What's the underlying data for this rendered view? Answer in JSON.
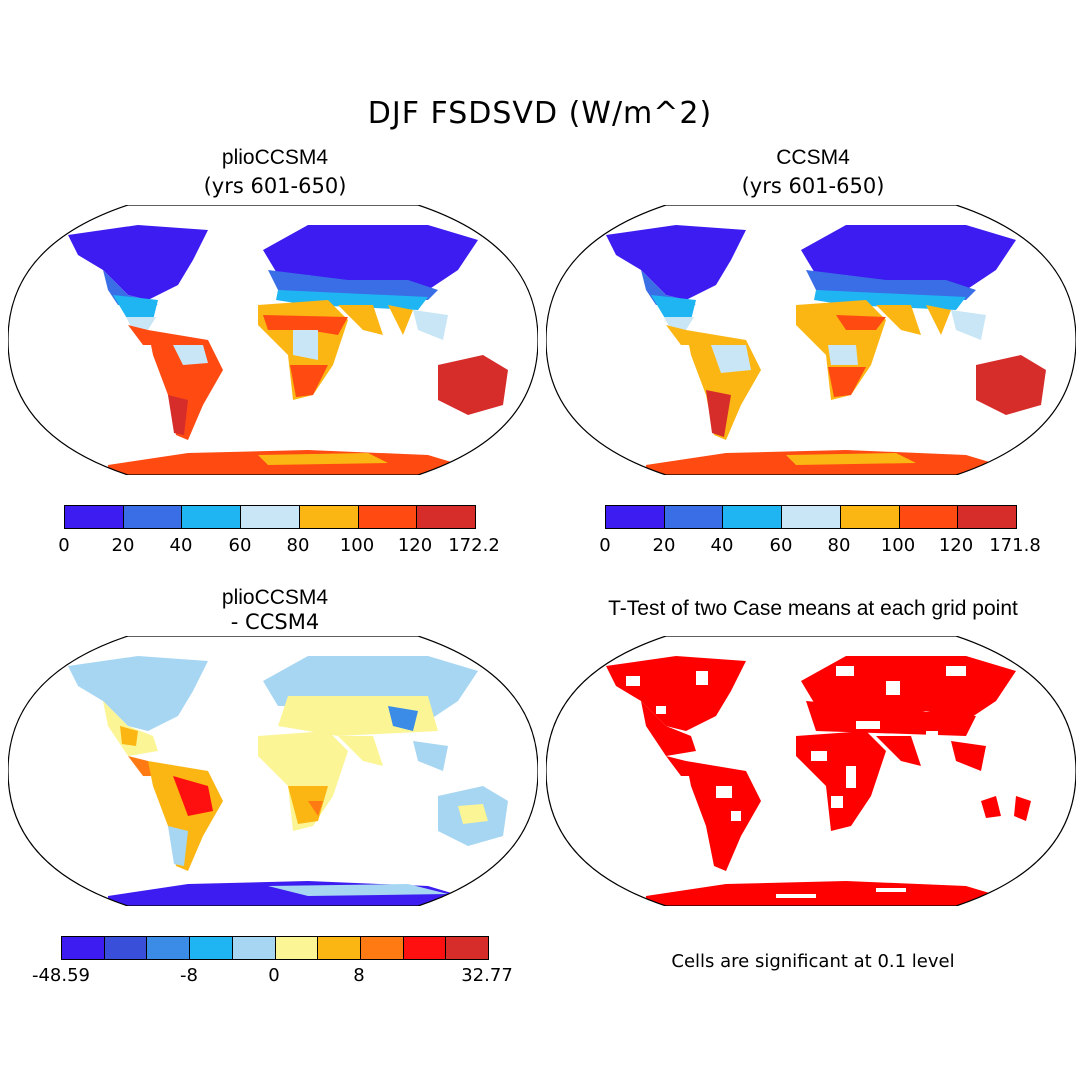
{
  "title": "DJF FSDSVD (W/m^2)",
  "panels": {
    "top_left": {
      "title": "plioCCSM4",
      "subtitle": "(yrs 601-650)",
      "colorbar": {
        "colors": [
          "#3c1cf0",
          "#3a6ee6",
          "#1fb5f3",
          "#c8e6f5",
          "#fbb613",
          "#ff4a12",
          "#d62d2b"
        ],
        "ticks": [
          "0",
          "20",
          "40",
          "60",
          "80",
          "100",
          "120",
          "172.2"
        ]
      }
    },
    "top_right": {
      "title": "CCSM4",
      "subtitle": "(yrs 601-650)",
      "colorbar": {
        "colors": [
          "#3c1cf0",
          "#3a6ee6",
          "#1fb5f3",
          "#c8e6f5",
          "#fbb613",
          "#ff4a12",
          "#d62d2b"
        ],
        "ticks": [
          "0",
          "20",
          "40",
          "60",
          "80",
          "100",
          "120",
          "171.8"
        ]
      }
    },
    "bottom_left": {
      "title": "plioCCSM4",
      "subtitle": "- CCSM4",
      "colorbar": {
        "colors": [
          "#3c1cf0",
          "#3a4fd9",
          "#3a8ce6",
          "#1fb5f3",
          "#a6d6f2",
          "#fbf595",
          "#fbb613",
          "#ff7a12",
          "#ff1010",
          "#d62d2b"
        ],
        "ticks": [
          "-48.59",
          "-8",
          "0",
          "8",
          "32.77"
        ]
      }
    },
    "bottom_right": {
      "title": "T-Test of two Case means at each grid point",
      "note": "Cells are significant at 0.1 level",
      "sig_color": "#ff0000"
    }
  }
}
